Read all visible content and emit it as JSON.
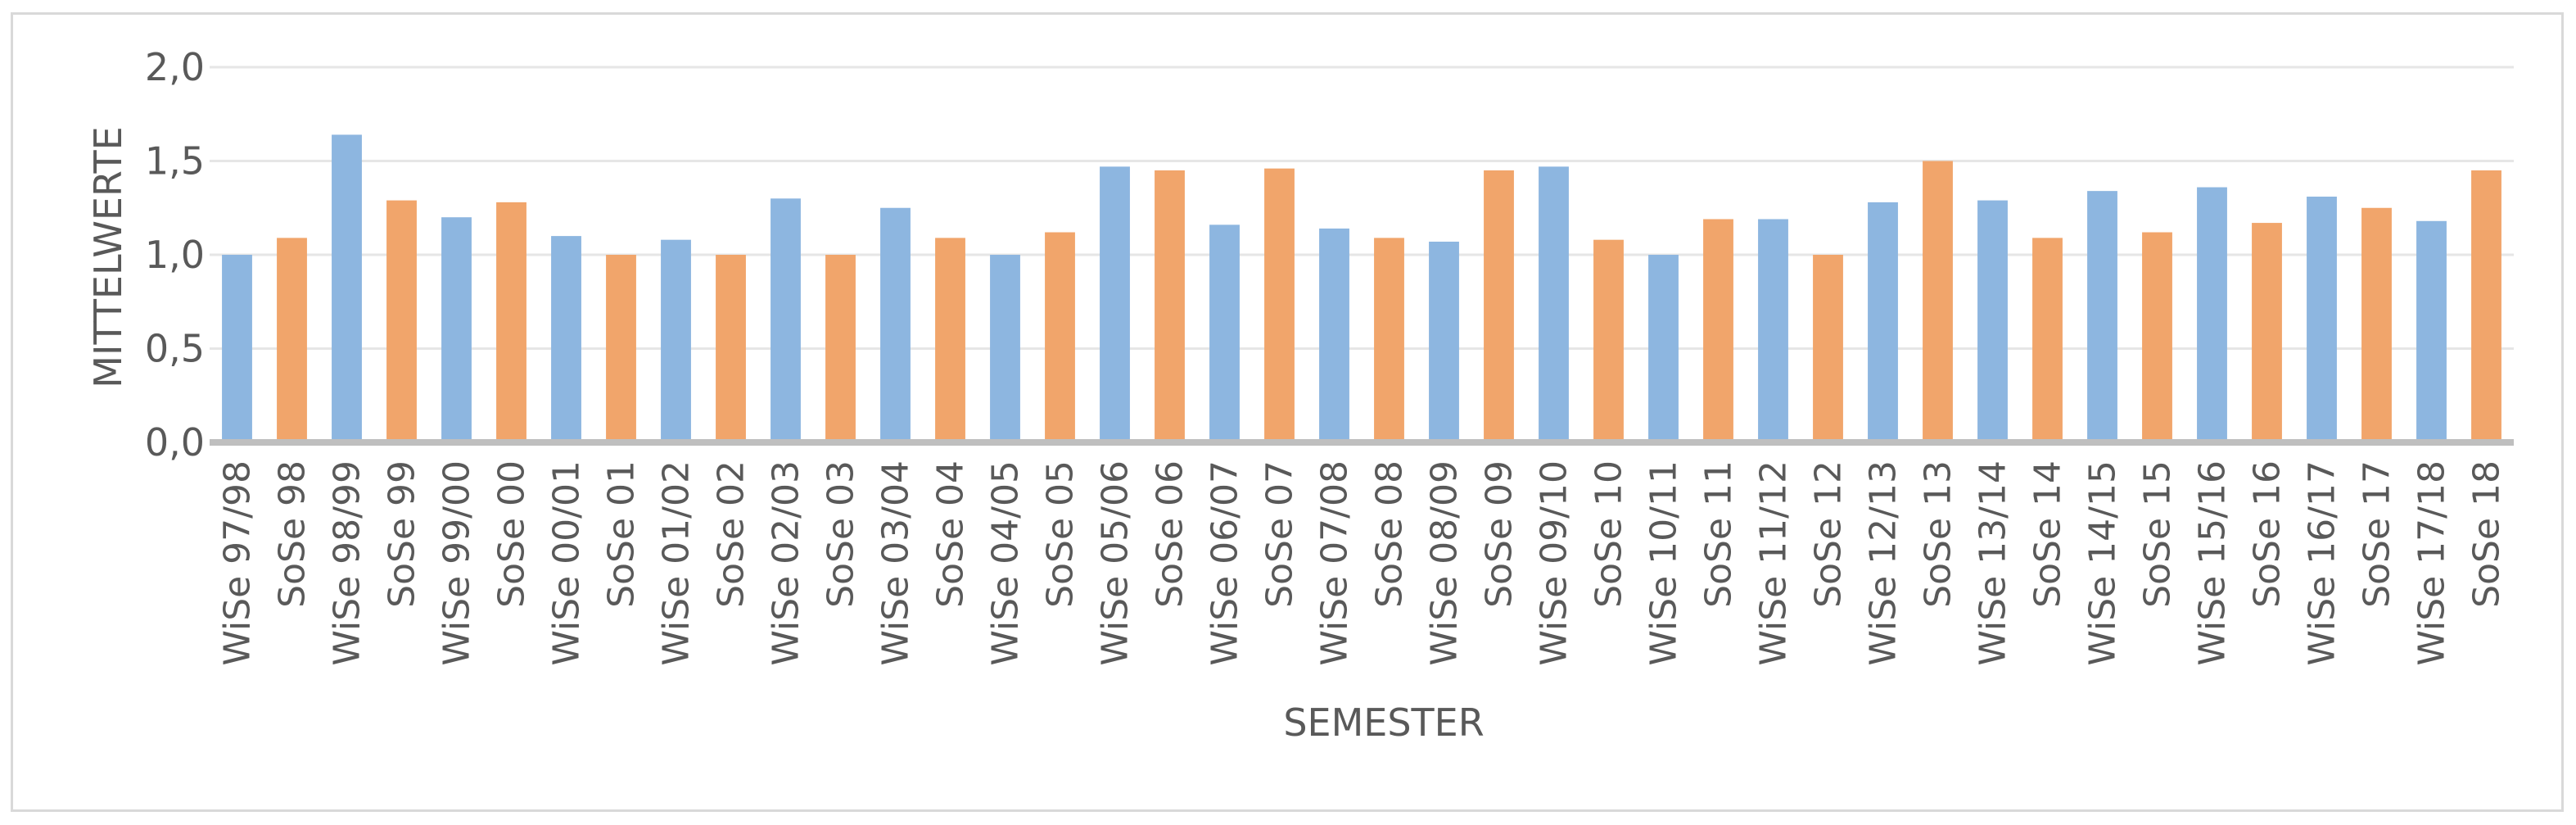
{
  "chart_data": {
    "type": "bar",
    "title": "",
    "xlabel": "SEMESTER",
    "ylabel": "MITTELWERTE",
    "ylim": [
      0,
      2
    ],
    "yticks": [
      "0,0",
      "0,5",
      "1,0",
      "1,5",
      "2,0"
    ],
    "ytick_values": [
      0,
      0.5,
      1,
      1.5,
      2
    ],
    "grid": true,
    "legend": "none",
    "colors": {
      "winter": "#8db6e0",
      "summer": "#f1a56b",
      "grid": "#e6e6e6",
      "axis": "#bfbfbf",
      "text": "#595959"
    },
    "categories": [
      "WiSe 97/98",
      "SoSe 98",
      "WiSe 98/99",
      "SoSe 99",
      "WiSe 99/00",
      "SoSe 00",
      "WiSe 00/01",
      "SoSe 01",
      "WiSe 01/02",
      "SoSe 02",
      "WiSe 02/03",
      "SoSe 03",
      "WiSe 03/04",
      "SoSe 04",
      "WiSe 04/05",
      "SoSe 05",
      "WiSe 05/06",
      "SoSe 06",
      "WiSe 06/07",
      "SoSe 07",
      "WiSe 07/08",
      "SoSe 08",
      "WiSe 08/09",
      "SoSe 09",
      "WiSe 09/10",
      "SoSe 10",
      "WiSe 10/11",
      "SoSe 11",
      "WiSe 11/12",
      "SoSe 12",
      "WiSe 12/13",
      "SoSe 13",
      "WiSe 13/14",
      "SoSe 14",
      "WiSe 14/15",
      "SoSe 15",
      "WiSe 15/16",
      "SoSe 16",
      "WiSe 16/17",
      "SoSe 17",
      "WiSe 17/18",
      "SoSe 18"
    ],
    "values": [
      1.0,
      1.09,
      1.64,
      1.29,
      1.2,
      1.28,
      1.1,
      1.0,
      1.08,
      1.0,
      1.3,
      1.0,
      1.25,
      1.09,
      1.0,
      1.12,
      1.47,
      1.45,
      1.16,
      1.46,
      1.14,
      1.09,
      1.07,
      1.45,
      1.47,
      1.08,
      1.0,
      1.19,
      1.19,
      1.0,
      1.28,
      1.5,
      1.29,
      1.09,
      1.34,
      1.12,
      1.36,
      1.17,
      1.31,
      1.25,
      1.18,
      1.45
    ]
  }
}
